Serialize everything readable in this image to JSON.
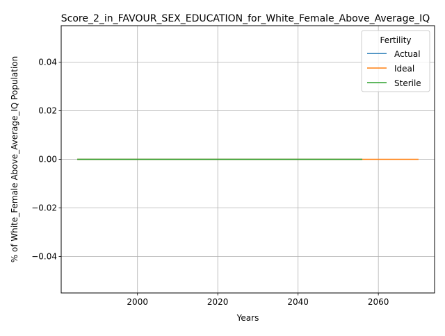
{
  "chart_data": {
    "type": "line",
    "title": "Score_2_in_FAVOUR_SEX_EDUCATION_for_White_Female_Above_Average_IQ",
    "xlabel": "Years",
    "ylabel": "% of White_Female Above_Average_IQ Population",
    "xlim": [
      1981,
      2074
    ],
    "ylim": [
      -0.055,
      0.055
    ],
    "xticks": [
      2000,
      2020,
      2040,
      2060
    ],
    "yticks": [
      -0.04,
      -0.02,
      0.0,
      0.02,
      0.04
    ],
    "ytick_labels": [
      "−0.04",
      "−0.02",
      "0.00",
      "0.02",
      "0.04"
    ],
    "grid": true,
    "legend": {
      "title": "Fertility",
      "placement": "top-right"
    },
    "series": [
      {
        "name": "Actual",
        "color": "#1f77b4",
        "x": [
          1985,
          2056
        ],
        "y": [
          0,
          0
        ]
      },
      {
        "name": "Ideal",
        "color": "#ff7f0e",
        "x": [
          1985,
          2070
        ],
        "y": [
          0,
          0
        ]
      },
      {
        "name": "Sterile",
        "color": "#2ca02c",
        "x": [
          1985,
          2056
        ],
        "y": [
          0,
          0
        ]
      }
    ]
  }
}
